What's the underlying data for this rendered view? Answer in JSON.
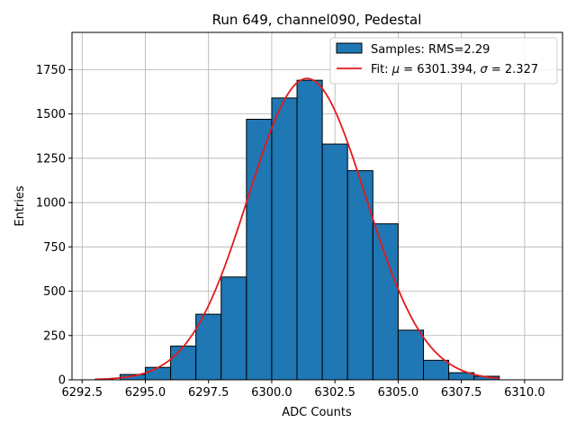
{
  "chart_data": {
    "type": "bar",
    "title": "Run 649, channel090, Pedestal",
    "xlabel": "ADC Counts",
    "ylabel": "Entries",
    "xlim": [
      6292.1,
      6311.5
    ],
    "ylim": [
      0,
      1960
    ],
    "grid": true,
    "legend_position": "top-right",
    "bar_color": "#1f77b4",
    "fit_color": "#e41a1c",
    "x_ticks": [
      "6292.5",
      "6295.0",
      "6297.5",
      "6300.0",
      "6302.5",
      "6305.0",
      "6307.5",
      "6310.0"
    ],
    "x_tick_values": [
      6292.5,
      6295.0,
      6297.5,
      6300.0,
      6302.5,
      6305.0,
      6307.5,
      6310.0
    ],
    "y_ticks": [
      "0",
      "250",
      "500",
      "750",
      "1000",
      "1250",
      "1500",
      "1750"
    ],
    "y_tick_values": [
      0,
      250,
      500,
      750,
      1000,
      1250,
      1500,
      1750
    ],
    "histogram": {
      "name": "Samples: RMS=2.29",
      "bin_edges": [
        6294,
        6295,
        6296,
        6297,
        6298,
        6299,
        6300,
        6301,
        6302,
        6303,
        6304,
        6305,
        6306,
        6307,
        6308,
        6309
      ],
      "counts": [
        30,
        70,
        190,
        370,
        580,
        1470,
        1590,
        1690,
        1330,
        1180,
        880,
        280,
        110,
        40,
        20
      ]
    },
    "fit": {
      "name_prefix": "Fit: ",
      "mu_label": "μ",
      "mu_text": " = 6301.394, ",
      "sigma_label": "σ",
      "sigma_text": " = 2.327",
      "mu": 6301.394,
      "sigma": 2.327,
      "amplitude": 1700,
      "x_range": [
        6293,
        6309
      ]
    }
  }
}
